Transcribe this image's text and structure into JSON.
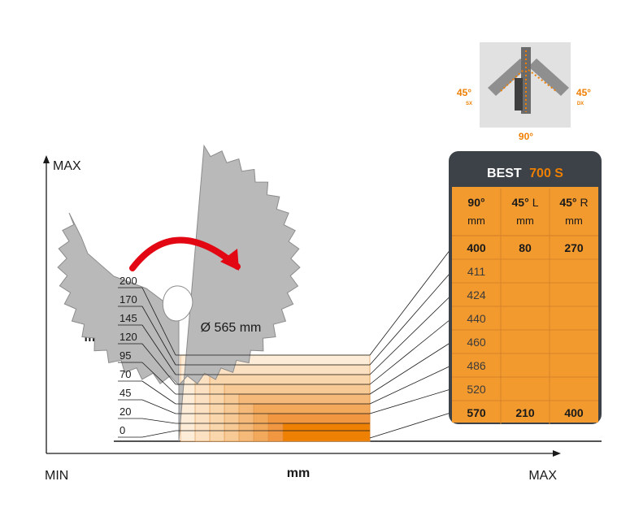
{
  "axis": {
    "y_top_label": "MAX",
    "x_left_label": "MIN",
    "x_right_label": "MAX",
    "x_center_label": "mm",
    "y_unit_label": "mm"
  },
  "blade": {
    "diameter_label": "Ø 565 mm"
  },
  "heights": [
    "200",
    "170",
    "145",
    "120",
    "95",
    "70",
    "45",
    "20",
    "0"
  ],
  "angles": {
    "left": "45°",
    "left_sub": "SX",
    "right": "45°",
    "right_sub": "DX",
    "bottom": "90°"
  },
  "table": {
    "title_main": "BEST",
    "title_accent": "700 S",
    "headers": [
      {
        "angle": "90°",
        "side": "",
        "unit": "mm"
      },
      {
        "angle": "45°",
        "side": "L",
        "unit": "mm"
      },
      {
        "angle": "45°",
        "side": "R",
        "unit": "mm"
      }
    ],
    "rows": [
      [
        "400",
        "80",
        "270"
      ],
      [
        "411",
        "",
        ""
      ],
      [
        "424",
        "",
        ""
      ],
      [
        "440",
        "",
        ""
      ],
      [
        "460",
        "",
        ""
      ],
      [
        "486",
        "",
        ""
      ],
      [
        "520",
        "",
        ""
      ],
      [
        "570",
        "210",
        "400"
      ]
    ]
  },
  "colors": {
    "orange": "#f29a2e",
    "dark_orange": "#ee7f00",
    "dark_header": "#3d4248",
    "blade_gray": "#b9b9b9",
    "red_arrow": "#e30613",
    "accent_text": "#ee7f00"
  }
}
